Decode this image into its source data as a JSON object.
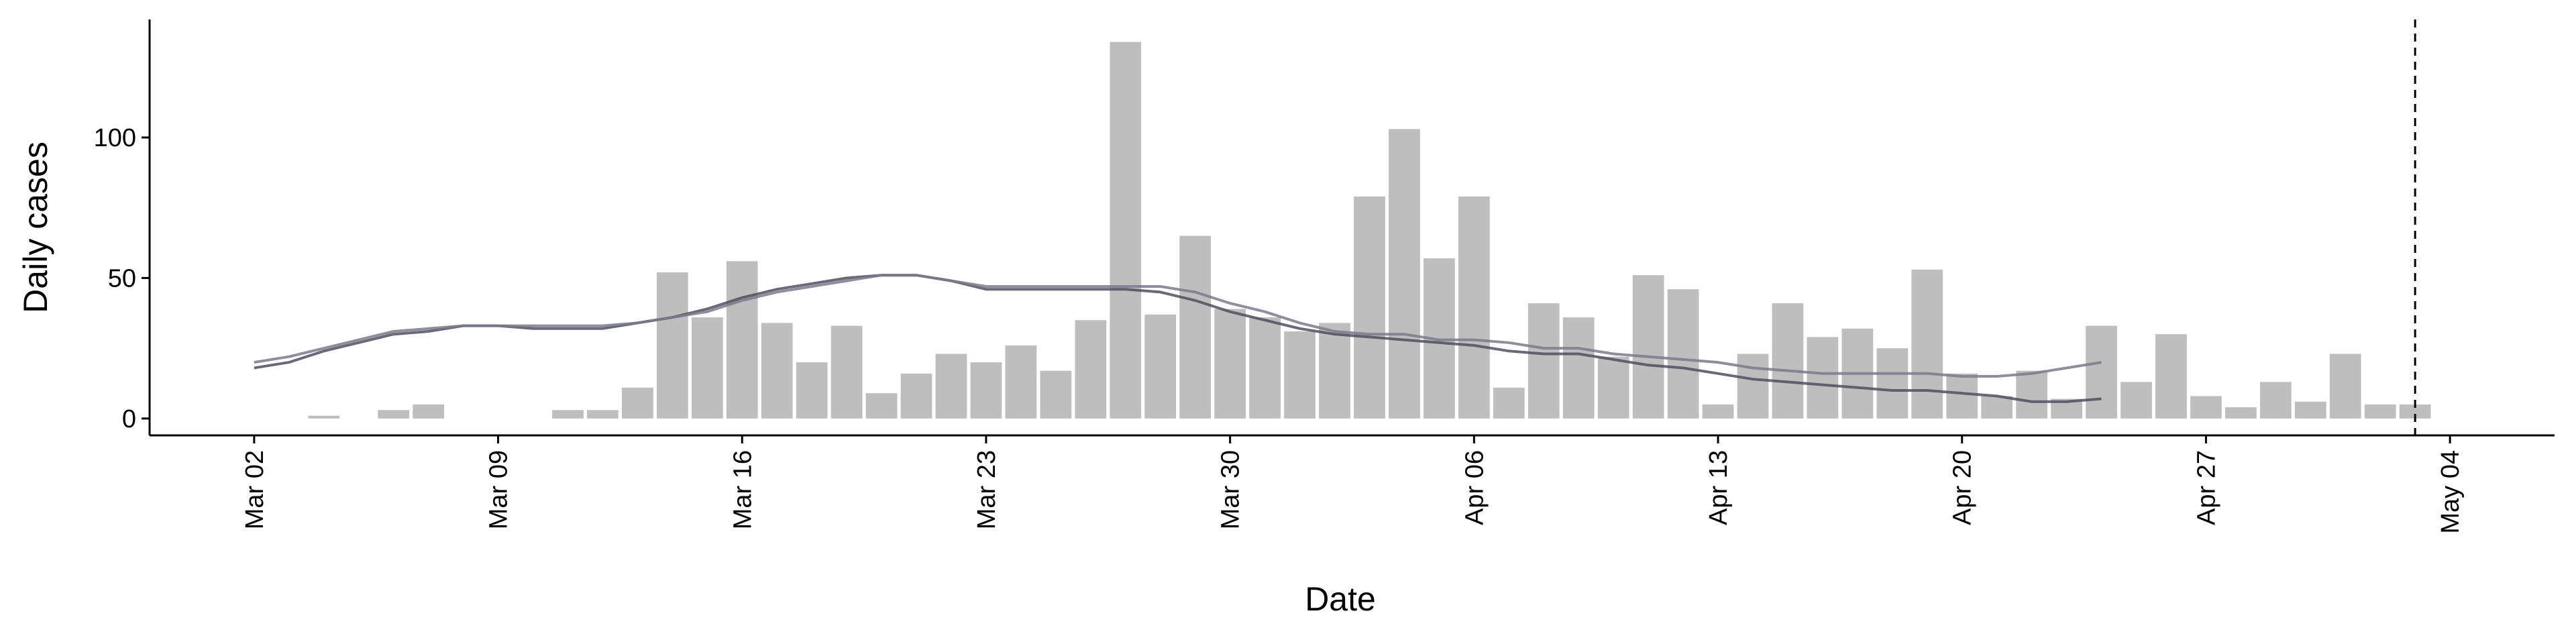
{
  "chart_data": {
    "type": "bar",
    "x_label": "Date",
    "y_label": "Daily cases",
    "x": [
      "Mar 02",
      "Mar 03",
      "Mar 04",
      "Mar 05",
      "Mar 06",
      "Mar 07",
      "Mar 08",
      "Mar 09",
      "Mar 10",
      "Mar 11",
      "Mar 12",
      "Mar 13",
      "Mar 14",
      "Mar 15",
      "Mar 16",
      "Mar 17",
      "Mar 18",
      "Mar 19",
      "Mar 20",
      "Mar 21",
      "Mar 22",
      "Mar 23",
      "Mar 24",
      "Mar 25",
      "Mar 26",
      "Mar 27",
      "Mar 28",
      "Mar 29",
      "Mar 30",
      "Mar 31",
      "Apr 01",
      "Apr 02",
      "Apr 03",
      "Apr 04",
      "Apr 05",
      "Apr 06",
      "Apr 07",
      "Apr 08",
      "Apr 09",
      "Apr 10",
      "Apr 11",
      "Apr 12",
      "Apr 13",
      "Apr 14",
      "Apr 15",
      "Apr 16",
      "Apr 17",
      "Apr 18",
      "Apr 19",
      "Apr 20",
      "Apr 21",
      "Apr 22",
      "Apr 23",
      "Apr 24",
      "Apr 25",
      "Apr 26",
      "Apr 27",
      "Apr 28",
      "Apr 29",
      "Apr 30",
      "May 01",
      "May 02",
      "May 03"
    ],
    "values": [
      0,
      0,
      1,
      0,
      3,
      5,
      0,
      0,
      0,
      3,
      3,
      11,
      52,
      36,
      56,
      34,
      20,
      33,
      9,
      16,
      23,
      20,
      26,
      17,
      35,
      134,
      37,
      65,
      39,
      36,
      31,
      34,
      79,
      103,
      57,
      79,
      11,
      41,
      36,
      22,
      51,
      46,
      5,
      23,
      41,
      29,
      32,
      25,
      53,
      16,
      8,
      17,
      7,
      33,
      13,
      30,
      8,
      4,
      13,
      6,
      23,
      5,
      5
    ],
    "color": "#bebebe",
    "series": [
      {
        "type": "line",
        "color": "#4f4f5f",
        "values": [
          18,
          20,
          24,
          27,
          30,
          31,
          33,
          33,
          32,
          32,
          32,
          34,
          36,
          39,
          43,
          46,
          48,
          50,
          51,
          51,
          49,
          46,
          46,
          46,
          46,
          46,
          45,
          42,
          38,
          35,
          32,
          30,
          29,
          28,
          27,
          26,
          24,
          23,
          23,
          21,
          19,
          18,
          16,
          14,
          13,
          12,
          11,
          10,
          10,
          9,
          8,
          6,
          6,
          7,
          null,
          null,
          null,
          null,
          null,
          null,
          null,
          null,
          null
        ]
      },
      {
        "type": "line",
        "color": "#7a7a8c",
        "values": [
          20,
          22,
          25,
          28,
          31,
          32,
          33,
          33,
          33,
          33,
          33,
          34,
          36,
          38,
          42,
          45,
          47,
          49,
          51,
          51,
          49,
          47,
          47,
          47,
          47,
          47,
          47,
          45,
          41,
          38,
          34,
          31,
          30,
          30,
          28,
          28,
          27,
          25,
          25,
          23,
          22,
          21,
          20,
          18,
          17,
          16,
          16,
          16,
          16,
          15,
          15,
          16,
          18,
          20,
          null,
          null,
          null,
          null,
          null,
          null,
          null,
          null,
          null
        ]
      }
    ],
    "vline": "May 03",
    "xlim": [
      "Feb 27",
      "May 07"
    ],
    "xticks": [
      "Mar 02",
      "Mar 09",
      "Mar 16",
      "Mar 23",
      "Mar 30",
      "Apr 06",
      "Apr 13",
      "Apr 20",
      "Apr 27",
      "May 04"
    ],
    "ylim": [
      -6,
      142
    ],
    "yticks": [
      0,
      50,
      100
    ]
  }
}
